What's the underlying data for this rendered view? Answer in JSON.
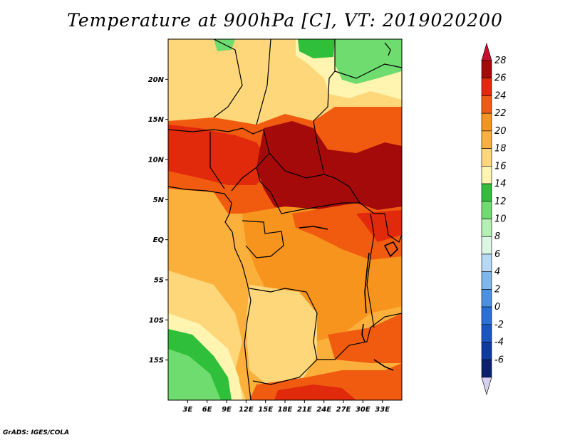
{
  "title": "Temperature at 900hPa [C], VT: 2019020200",
  "credit": "GrADS: IGES/COLA",
  "map": {
    "lon_range": [
      0,
      36
    ],
    "lat_range": [
      -20,
      25
    ],
    "lat_ticks": [
      {
        "value": 20,
        "label": "20N"
      },
      {
        "value": 15,
        "label": "15N"
      },
      {
        "value": 10,
        "label": "10N"
      },
      {
        "value": 5,
        "label": "5N"
      },
      {
        "value": 0,
        "label": "EQ"
      },
      {
        "value": -5,
        "label": "5S"
      },
      {
        "value": -10,
        "label": "10S"
      },
      {
        "value": -15,
        "label": "15S"
      }
    ],
    "lon_ticks": [
      {
        "value": 3,
        "label": "3E"
      },
      {
        "value": 6,
        "label": "6E"
      },
      {
        "value": 9,
        "label": "9E"
      },
      {
        "value": 12,
        "label": "12E"
      },
      {
        "value": 15,
        "label": "15E"
      },
      {
        "value": 18,
        "label": "18E"
      },
      {
        "value": 21,
        "label": "21E"
      },
      {
        "value": 24,
        "label": "24E"
      },
      {
        "value": 27,
        "label": "27E"
      },
      {
        "value": 30,
        "label": "30E"
      },
      {
        "value": 33,
        "label": "33E"
      }
    ]
  },
  "colorbar": {
    "levels": [
      {
        "label": "28",
        "color": "#a50a0a"
      },
      {
        "label": "26",
        "color": "#e12a0c"
      },
      {
        "label": "24",
        "color": "#f05b10"
      },
      {
        "label": "22",
        "color": "#f7941d"
      },
      {
        "label": "20",
        "color": "#fbb03b"
      },
      {
        "label": "18",
        "color": "#fdd77a"
      },
      {
        "label": "16",
        "color": "#fff5b0"
      },
      {
        "label": "14",
        "color": "#2fbf3a"
      },
      {
        "label": "12",
        "color": "#6fdc6f"
      },
      {
        "label": "10",
        "color": "#b4f0b4"
      },
      {
        "label": "8",
        "color": "#dcf6e4"
      },
      {
        "label": "6",
        "color": "#b4d8f5"
      },
      {
        "label": "4",
        "color": "#7eb6ee"
      },
      {
        "label": "2",
        "color": "#4a91e3"
      },
      {
        "label": "0",
        "color": "#2a6fdb"
      },
      {
        "label": "-2",
        "color": "#1a55c8"
      },
      {
        "label": "-4",
        "color": "#0f3aa5"
      },
      {
        "label": "-6",
        "color": "#0a1f70"
      }
    ],
    "top_triangle_color": "#c8102e",
    "bottom_triangle_color": "#d6d0f0"
  }
}
